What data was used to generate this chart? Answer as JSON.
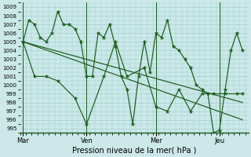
{
  "xlabel": "Pression niveau de la mer( hPa )",
  "ylim": [
    994.5,
    1009.5
  ],
  "yticks": [
    995,
    996,
    997,
    998,
    999,
    1000,
    1001,
    1002,
    1003,
    1004,
    1005,
    1006,
    1007,
    1008,
    1009
  ],
  "xtick_labels": [
    "Mar",
    "Ven",
    "Mer",
    "Jeu"
  ],
  "xtick_positions": [
    0,
    11,
    23,
    34
  ],
  "xlim": [
    -0.5,
    39
  ],
  "background_color": "#cce8e8",
  "grid_color": "#99cccc",
  "line_color": "#1a5c1a",
  "series1_x": [
    0,
    1,
    2,
    3,
    4,
    5,
    6,
    7,
    8,
    9,
    10,
    11,
    12,
    13,
    14,
    15,
    16,
    17,
    18,
    19,
    20,
    21,
    22,
    23,
    24,
    25,
    26,
    27,
    28,
    29,
    30,
    31,
    32,
    33,
    34,
    35,
    36,
    37,
    38
  ],
  "series1_y": [
    1005,
    1007.5,
    1007,
    1005.5,
    1005,
    1006,
    1008.5,
    1007,
    1007,
    1006.5,
    1005,
    1001,
    1001,
    1006,
    1005.5,
    1007,
    1004.5,
    1001,
    999.5,
    995.5,
    1001,
    1005,
    1001.5,
    1006,
    1005.5,
    1007.5,
    1004.5,
    1004,
    1003,
    1002,
    1000,
    999.5,
    999,
    994.5,
    994.8,
    999.5,
    1004,
    1006,
    1004
  ],
  "series2_x": [
    0,
    2,
    4,
    6,
    9,
    11,
    14,
    16,
    18,
    21,
    23,
    25,
    27,
    29,
    31,
    33,
    35,
    37,
    38
  ],
  "series2_y": [
    1005,
    1001,
    1001,
    1000.5,
    998.5,
    995.5,
    1001,
    1005,
    1001,
    1002,
    997.5,
    997,
    999.5,
    997,
    999,
    999,
    999,
    999,
    999
  ],
  "trend_x": [
    0,
    38
  ],
  "trend_y": [
    1005,
    998
  ],
  "trend2_x": [
    0,
    38
  ],
  "trend2_y": [
    1005,
    996
  ]
}
